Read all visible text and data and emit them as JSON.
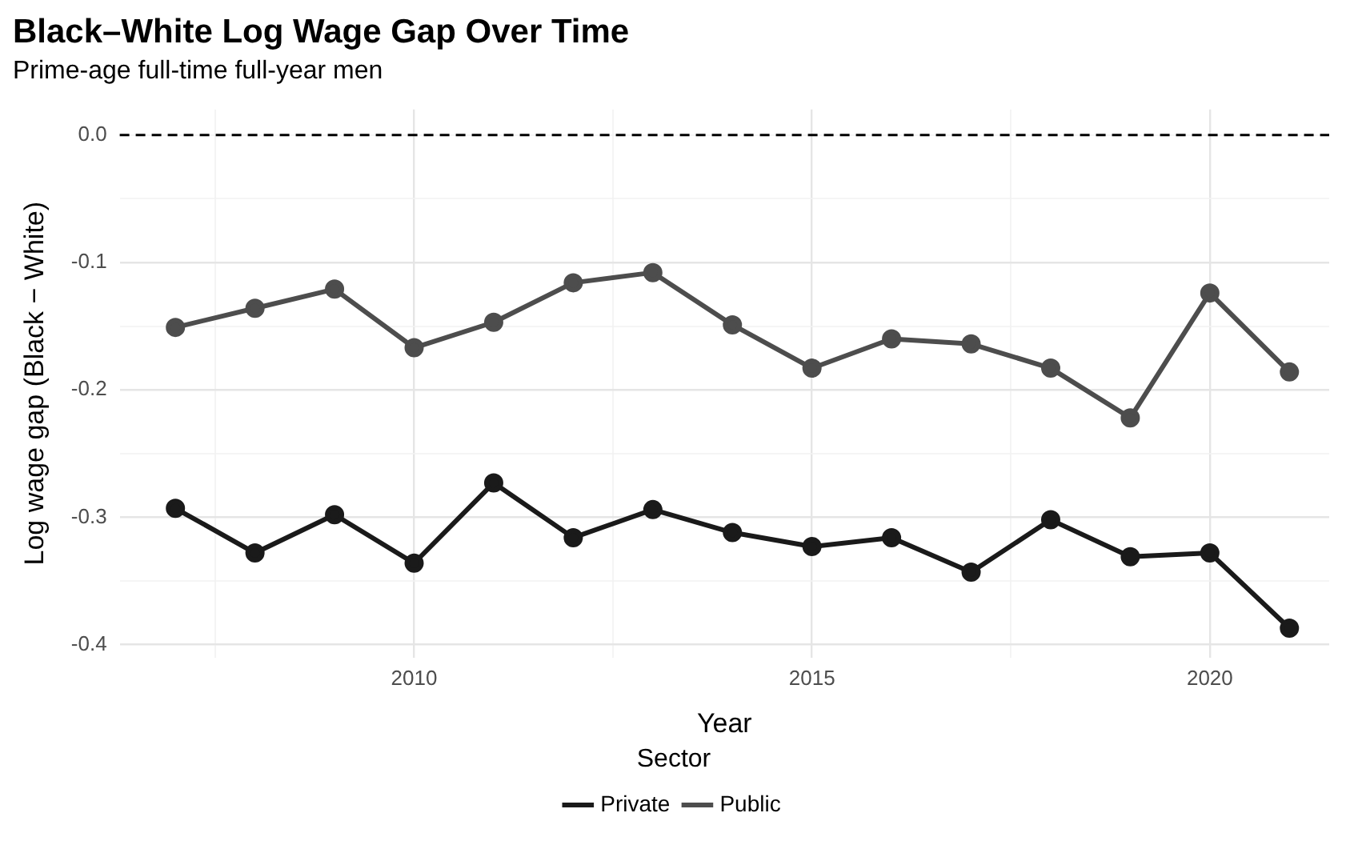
{
  "chart_data": {
    "type": "line",
    "title": "Black–White Log Wage Gap Over Time",
    "subtitle": "Prime-age full-time full-year men",
    "xlabel": "Year",
    "ylabel": "Log wage gap (Black − White)",
    "legend_title": "Sector",
    "x": [
      2007,
      2008,
      2009,
      2010,
      2011,
      2012,
      2013,
      2014,
      2015,
      2016,
      2017,
      2018,
      2019,
      2020,
      2021
    ],
    "series": [
      {
        "name": "Private",
        "color": "#1a1a1a",
        "values": [
          -0.293,
          -0.328,
          -0.298,
          -0.336,
          -0.273,
          -0.316,
          -0.294,
          -0.312,
          -0.323,
          -0.316,
          -0.343,
          -0.302,
          -0.331,
          -0.328,
          -0.387
        ]
      },
      {
        "name": "Public",
        "color": "#4d4d4d",
        "values": [
          -0.151,
          -0.136,
          -0.121,
          -0.167,
          -0.147,
          -0.116,
          -0.108,
          -0.149,
          -0.183,
          -0.16,
          -0.164,
          -0.183,
          -0.222,
          -0.124,
          -0.186
        ]
      }
    ],
    "xlim": [
      2006.3,
      2021.5
    ],
    "xticks": [
      {
        "value": 2007.5,
        "label": null
      },
      2010,
      {
        "value": 2012.5,
        "label": null
      },
      2015,
      {
        "value": 2017.5,
        "label": null
      },
      2020
    ],
    "ylim": [
      -0.41,
      0.02
    ],
    "yticks": [
      -0.4,
      {
        "value": -0.35,
        "label": null
      },
      -0.3,
      {
        "value": -0.25,
        "label": null
      },
      -0.2,
      {
        "value": -0.15,
        "label": null
      },
      -0.1,
      {
        "value": -0.05,
        "label": null
      },
      {
        "value": 0,
        "label": "0.0"
      }
    ],
    "ref_lines": [
      {
        "axis": "y",
        "value": 0,
        "color": "#000000",
        "line_style": "dashed"
      }
    ],
    "grid": true,
    "legend": "bottom",
    "marker": "circle",
    "line_style": "solid"
  }
}
